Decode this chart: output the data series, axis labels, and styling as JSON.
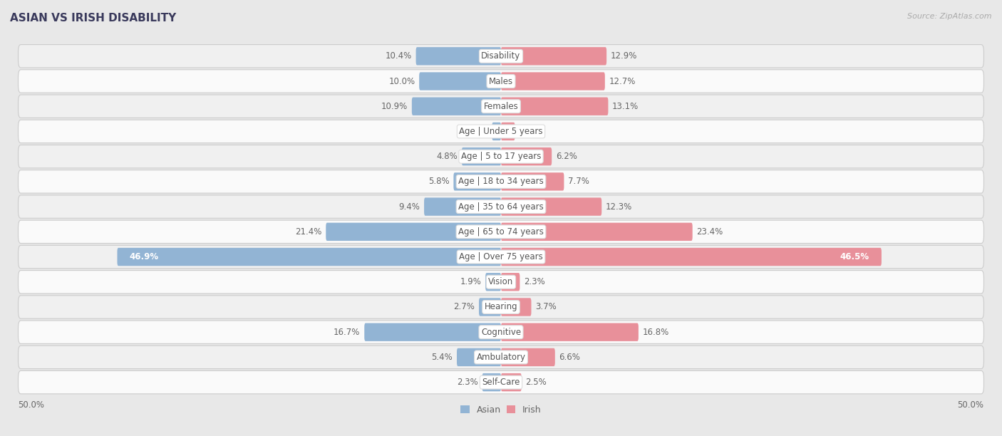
{
  "title": "ASIAN VS IRISH DISABILITY",
  "source": "Source: ZipAtlas.com",
  "categories": [
    "Disability",
    "Males",
    "Females",
    "Age | Under 5 years",
    "Age | 5 to 17 years",
    "Age | 18 to 34 years",
    "Age | 35 to 64 years",
    "Age | 65 to 74 years",
    "Age | Over 75 years",
    "Vision",
    "Hearing",
    "Cognitive",
    "Ambulatory",
    "Self-Care"
  ],
  "asian_values": [
    10.4,
    10.0,
    10.9,
    1.1,
    4.8,
    5.8,
    9.4,
    21.4,
    46.9,
    1.9,
    2.7,
    16.7,
    5.4,
    2.3
  ],
  "irish_values": [
    12.9,
    12.7,
    13.1,
    1.7,
    6.2,
    7.7,
    12.3,
    23.4,
    46.5,
    2.3,
    3.7,
    16.8,
    6.6,
    2.5
  ],
  "asian_color": "#92b4d4",
  "irish_color": "#e8909a",
  "asian_label": "Asian",
  "irish_label": "Irish",
  "axis_max": 50.0,
  "bg_color": "#e8e8e8",
  "row_colors": [
    "#f0f0f0",
    "#fafafa"
  ],
  "bar_height": 0.72,
  "label_fontsize": 8.5,
  "category_fontsize": 8.5,
  "title_fontsize": 11,
  "value_label_threshold": 40.0
}
